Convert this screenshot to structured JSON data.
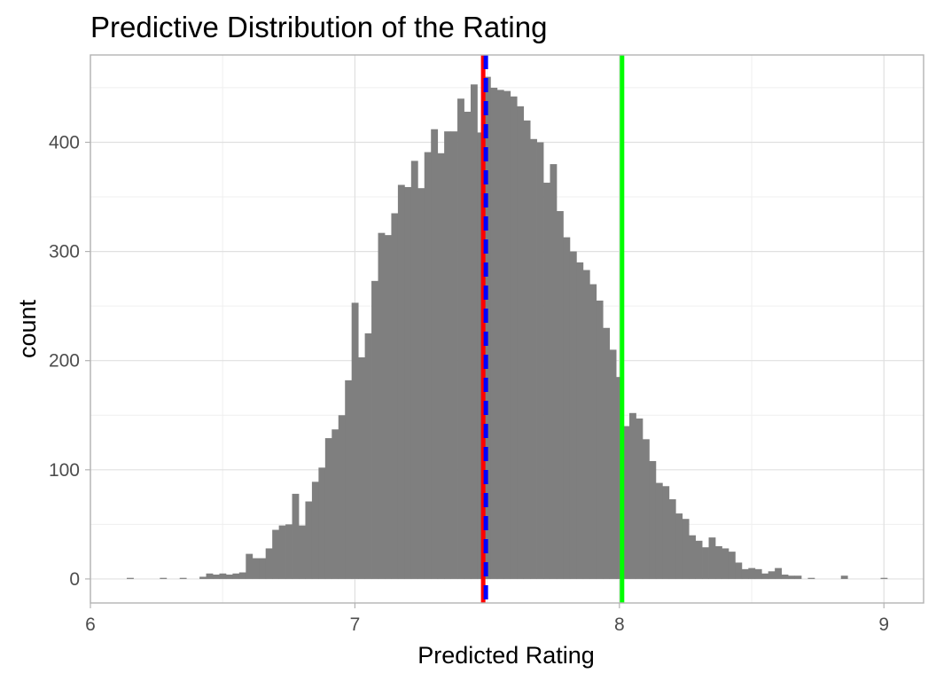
{
  "chart_data": {
    "type": "bar",
    "subtype": "histogram",
    "title": "Predictive Distribution of the Rating",
    "xlabel": "Predicted Rating",
    "ylabel": "count",
    "xlim": [
      6.0,
      9.15
    ],
    "ylim": [
      -22,
      480
    ],
    "x_ticks": [
      6,
      7,
      8,
      9
    ],
    "y_ticks": [
      0,
      100,
      200,
      300,
      400
    ],
    "grid": true,
    "legend": "none",
    "bar_color": "#7f7f7f",
    "bin_width": 0.025,
    "bin_centers": [
      6.15,
      6.175,
      6.2,
      6.225,
      6.25,
      6.275,
      6.3,
      6.325,
      6.35,
      6.375,
      6.4,
      6.425,
      6.45,
      6.475,
      6.5,
      6.525,
      6.55,
      6.575,
      6.6,
      6.625,
      6.65,
      6.675,
      6.7,
      6.725,
      6.75,
      6.775,
      6.8,
      6.825,
      6.85,
      6.875,
      6.9,
      6.925,
      6.95,
      6.975,
      7.0,
      7.025,
      7.05,
      7.075,
      7.1,
      7.125,
      7.15,
      7.175,
      7.2,
      7.225,
      7.25,
      7.275,
      7.3,
      7.325,
      7.35,
      7.375,
      7.4,
      7.425,
      7.45,
      7.475,
      7.5,
      7.525,
      7.55,
      7.575,
      7.6,
      7.625,
      7.65,
      7.675,
      7.7,
      7.725,
      7.75,
      7.775,
      7.8,
      7.825,
      7.85,
      7.875,
      7.9,
      7.925,
      7.95,
      7.975,
      8.0,
      8.025,
      8.05,
      8.075,
      8.1,
      8.125,
      8.15,
      8.175,
      8.2,
      8.225,
      8.25,
      8.275,
      8.3,
      8.325,
      8.35,
      8.375,
      8.4,
      8.425,
      8.45,
      8.475,
      8.5,
      8.525,
      8.55,
      8.575,
      8.6,
      8.625,
      8.65,
      8.675,
      8.7,
      8.725,
      8.75,
      8.775,
      8.8,
      8.825,
      8.85,
      8.875,
      8.9,
      8.925,
      8.95,
      8.975,
      9.0
    ],
    "counts": [
      1,
      0,
      0,
      0,
      0,
      1,
      0,
      0,
      1,
      0,
      0,
      2,
      5,
      4,
      5,
      4,
      5,
      6,
      23,
      19,
      19,
      28,
      45,
      49,
      50,
      78,
      49,
      71,
      89,
      102,
      129,
      137,
      150,
      182,
      253,
      203,
      225,
      273,
      317,
      315,
      335,
      361,
      359,
      383,
      358,
      391,
      412,
      390,
      410,
      410,
      440,
      428,
      453,
      409,
      460,
      450,
      448,
      447,
      442,
      433,
      420,
      403,
      400,
      363,
      380,
      337,
      313,
      300,
      290,
      283,
      270,
      255,
      230,
      210,
      185,
      140,
      152,
      147,
      128,
      108,
      88,
      85,
      73,
      60,
      55,
      40,
      35,
      29,
      38,
      30,
      28,
      25,
      15,
      9,
      10,
      9,
      5,
      7,
      10,
      4,
      3,
      3,
      0,
      1,
      0,
      0,
      0,
      0,
      3,
      0,
      0,
      0,
      0,
      0,
      1
    ],
    "vlines": [
      {
        "x": 8.01,
        "color": "#00ff00",
        "linetype": "solid"
      },
      {
        "x": 7.485,
        "color": "#ff0000",
        "linetype": "solid"
      },
      {
        "x": 7.495,
        "color": "#0000ff",
        "linetype": "dashed"
      }
    ]
  }
}
